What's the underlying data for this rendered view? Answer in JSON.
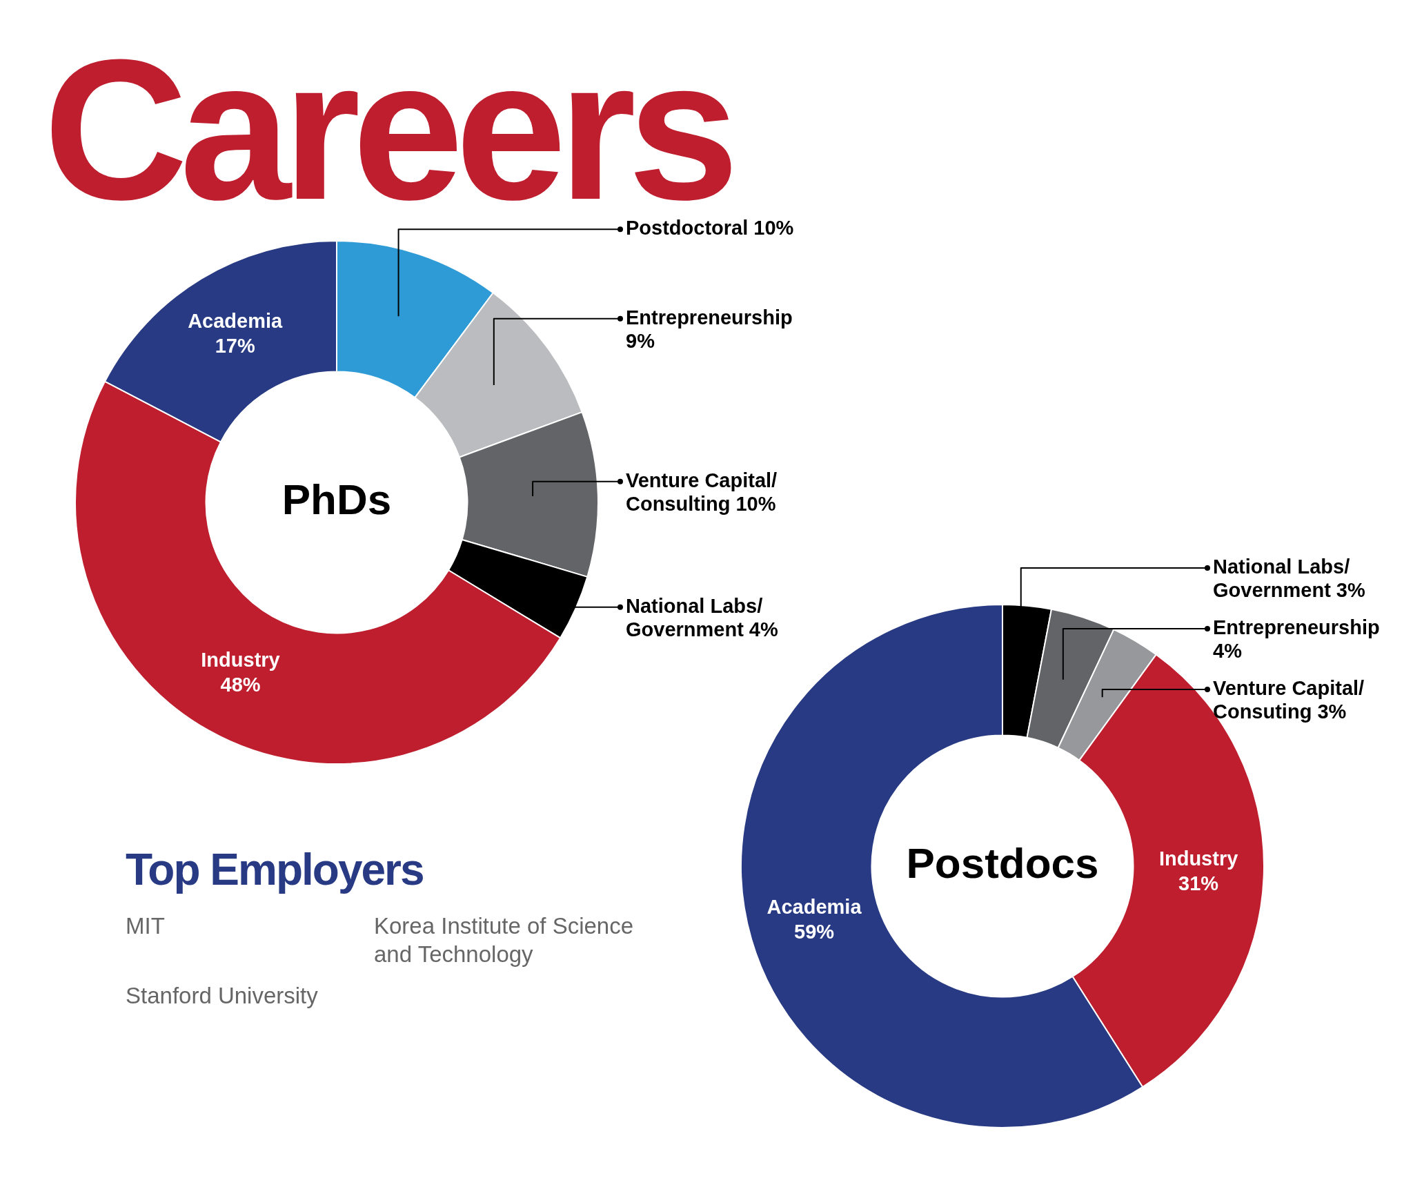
{
  "chart_data": [
    {
      "type": "other",
      "title": "Careers"
    },
    {
      "type": "donut",
      "title": "PhDs",
      "categories": [
        "Postdoctoral",
        "Entrepreneurship",
        "Venture Capital/Consulting",
        "National Labs/Government",
        "Industry",
        "Academia"
      ],
      "values": [
        10,
        9,
        10,
        4,
        48,
        17
      ],
      "value_labels": [
        "10%",
        "9%",
        "10%",
        "4%",
        "48%",
        "17%"
      ],
      "colors": [
        "#2e9bd6",
        "#bbbcbf",
        "#636467",
        "#000000",
        "#be1e2d",
        "#283a83"
      ]
    },
    {
      "type": "other",
      "title": "Top Employers",
      "annotations": [
        "MIT",
        "Stanford University",
        "Korea Institute of Science and Technology"
      ]
    },
    {
      "type": "donut",
      "title": "Postdocs",
      "categories": [
        "National Labs/Government",
        "Entrepreneurship",
        "Venture Capital/Consuting",
        "Industry",
        "Academia"
      ],
      "values": [
        3,
        4,
        3,
        31,
        59
      ],
      "value_labels": [
        "3%",
        "4%",
        "3%",
        "31%",
        "59%"
      ],
      "colors": [
        "#000000",
        "#636467",
        "#97989b",
        "#be1e2d",
        "#283a83"
      ]
    }
  ]
}
